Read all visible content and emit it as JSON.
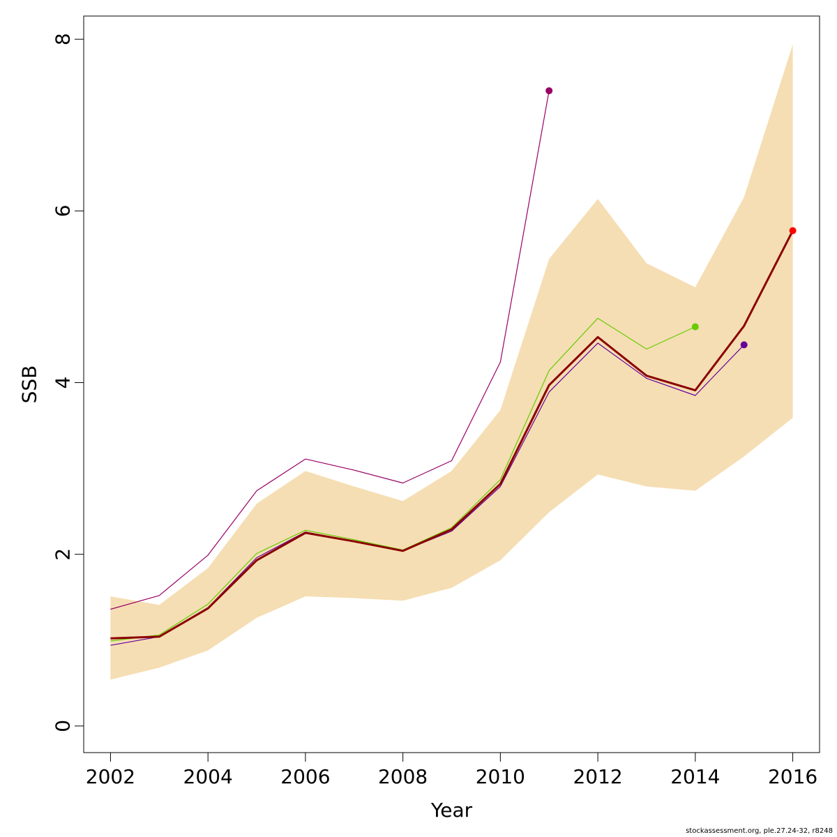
{
  "chart_data": {
    "type": "line",
    "xlabel": "Year",
    "ylabel": "SSB",
    "xlim": [
      2001.45,
      2016.55
    ],
    "ylim": [
      -0.31,
      8.27
    ],
    "x_ticks": [
      2002,
      2004,
      2006,
      2008,
      2010,
      2012,
      2014,
      2016
    ],
    "y_ticks": [
      0,
      2,
      4,
      6,
      8
    ],
    "grid": false,
    "legend": "none",
    "confidence_band": {
      "color": "#F5DEB3",
      "x": [
        2002,
        2003,
        2004,
        2005,
        2006,
        2007,
        2008,
        2009,
        2010,
        2011,
        2012,
        2013,
        2014,
        2015,
        2016
      ],
      "lower": [
        0.54,
        0.68,
        0.88,
        1.26,
        1.51,
        1.49,
        1.46,
        1.61,
        1.93,
        2.49,
        2.93,
        2.79,
        2.74,
        3.14,
        3.59
      ],
      "upper": [
        1.51,
        1.41,
        1.84,
        2.59,
        2.97,
        2.79,
        2.62,
        2.97,
        3.68,
        5.44,
        6.14,
        5.39,
        5.11,
        6.16,
        7.94
      ]
    },
    "series": [
      {
        "color": "#990066",
        "x": [
          2002,
          2003,
          2004,
          2005,
          2006,
          2007,
          2008,
          2009,
          2010,
          2011
        ],
        "values": [
          1.36,
          1.52,
          1.99,
          2.74,
          3.11,
          2.98,
          2.83,
          3.09,
          4.24,
          7.4
        ]
      },
      {
        "color": "#66CC00",
        "x": [
          2002,
          2003,
          2004,
          2005,
          2006,
          2007,
          2008,
          2009,
          2010,
          2011,
          2012,
          2013,
          2014
        ],
        "values": [
          0.99,
          1.06,
          1.42,
          2.01,
          2.28,
          2.17,
          2.05,
          2.31,
          2.87,
          4.14,
          4.75,
          4.39,
          4.65
        ]
      },
      {
        "color": "#660099",
        "x": [
          2002,
          2003,
          2004,
          2005,
          2006,
          2007,
          2008,
          2009,
          2010,
          2011,
          2012,
          2013,
          2014,
          2015
        ],
        "values": [
          0.94,
          1.04,
          1.38,
          1.96,
          2.26,
          2.15,
          2.04,
          2.27,
          2.79,
          3.89,
          4.46,
          4.05,
          3.85,
          4.44
        ]
      },
      {
        "color": "#8B0000",
        "highlight_color": "#FF0000",
        "x": [
          2002,
          2003,
          2004,
          2005,
          2006,
          2007,
          2008,
          2009,
          2010,
          2011,
          2012,
          2013,
          2014,
          2015,
          2016
        ],
        "values": [
          1.02,
          1.04,
          1.37,
          1.93,
          2.25,
          2.15,
          2.04,
          2.29,
          2.82,
          3.97,
          4.53,
          4.08,
          3.91,
          4.66,
          5.77
        ]
      }
    ]
  },
  "footer": {
    "note": "stockassessment.org, ple.27.24-32, r8248"
  }
}
